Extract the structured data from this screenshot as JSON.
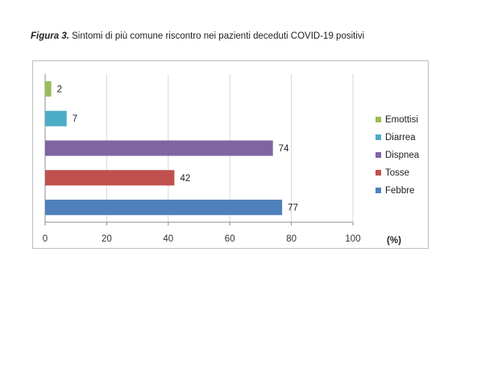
{
  "caption": {
    "lead": "Figura 3.",
    "text": " Sintomi di più comune riscontro nei pazienti deceduti COVID-19 positivi"
  },
  "chart_data": {
    "type": "bar",
    "orientation": "horizontal",
    "title": "Figura 3. Sintomi di più comune riscontro nei pazienti deceduti COVID-19 positivi",
    "xlabel": "(%)",
    "xlim": [
      0,
      100
    ],
    "xticks": [
      0,
      20,
      40,
      60,
      80,
      100
    ],
    "grid": true,
    "legend_position": "right",
    "categories": [
      "Emottisi",
      "Diarrea",
      "Dispnea",
      "Tosse",
      "Febbre"
    ],
    "values": [
      2,
      7,
      74,
      42,
      77
    ],
    "colors": [
      "#9bbb59",
      "#4bacc6",
      "#8064a2",
      "#c0504d",
      "#4f81bd"
    ]
  }
}
